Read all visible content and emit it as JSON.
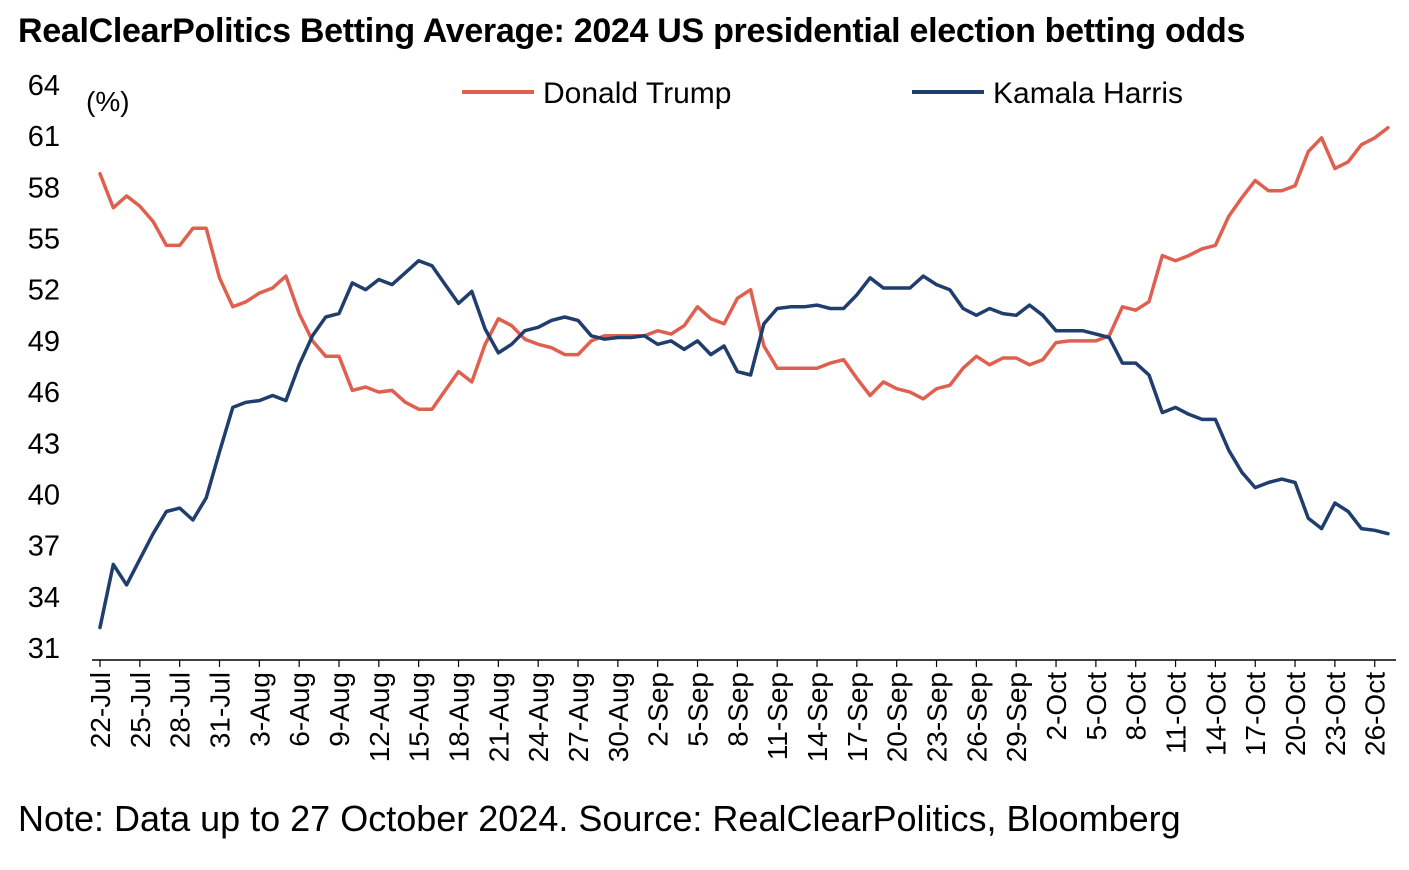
{
  "title": "RealClearPolitics Betting Average: 2024 US presidential election betting odds",
  "note": "Note: Data up to 27 October 2024. Source: RealClearPolitics, Bloomberg",
  "chart_data": {
    "type": "line",
    "title": "RealClearPolitics Betting Average: 2024 US presidential election betting odds",
    "y_unit_label": "(%)",
    "ylim": [
      31,
      64
    ],
    "y_ticks": [
      31,
      34,
      37,
      40,
      43,
      46,
      49,
      52,
      55,
      58,
      61,
      64
    ],
    "x_tick_labels": [
      "22-Jul",
      "25-Jul",
      "28-Jul",
      "31-Jul",
      "3-Aug",
      "6-Aug",
      "9-Aug",
      "12-Aug",
      "15-Aug",
      "18-Aug",
      "21-Aug",
      "24-Aug",
      "27-Aug",
      "30-Aug",
      "2-Sep",
      "5-Sep",
      "8-Sep",
      "11-Sep",
      "14-Sep",
      "17-Sep",
      "20-Sep",
      "23-Sep",
      "26-Sep",
      "29-Sep",
      "2-Oct",
      "5-Oct",
      "8-Oct",
      "11-Oct",
      "14-Oct",
      "17-Oct",
      "20-Oct",
      "23-Oct",
      "26-Oct"
    ],
    "grid": false,
    "legend_position": "top",
    "x": [
      "22-Jul",
      "23-Jul",
      "24-Jul",
      "25-Jul",
      "26-Jul",
      "27-Jul",
      "28-Jul",
      "29-Jul",
      "30-Jul",
      "31-Jul",
      "1-Aug",
      "2-Aug",
      "3-Aug",
      "4-Aug",
      "5-Aug",
      "6-Aug",
      "7-Aug",
      "8-Aug",
      "9-Aug",
      "10-Aug",
      "11-Aug",
      "12-Aug",
      "13-Aug",
      "14-Aug",
      "15-Aug",
      "16-Aug",
      "17-Aug",
      "18-Aug",
      "19-Aug",
      "20-Aug",
      "21-Aug",
      "22-Aug",
      "23-Aug",
      "24-Aug",
      "25-Aug",
      "26-Aug",
      "27-Aug",
      "28-Aug",
      "29-Aug",
      "30-Aug",
      "31-Aug",
      "1-Sep",
      "2-Sep",
      "3-Sep",
      "4-Sep",
      "5-Sep",
      "6-Sep",
      "7-Sep",
      "8-Sep",
      "9-Sep",
      "10-Sep",
      "11-Sep",
      "12-Sep",
      "13-Sep",
      "14-Sep",
      "15-Sep",
      "16-Sep",
      "17-Sep",
      "18-Sep",
      "19-Sep",
      "20-Sep",
      "21-Sep",
      "22-Sep",
      "23-Sep",
      "24-Sep",
      "25-Sep",
      "26-Sep",
      "27-Sep",
      "28-Sep",
      "29-Sep",
      "30-Sep",
      "1-Oct",
      "2-Oct",
      "3-Oct",
      "4-Oct",
      "5-Oct",
      "6-Oct",
      "7-Oct",
      "8-Oct",
      "9-Oct",
      "10-Oct",
      "11-Oct",
      "12-Oct",
      "13-Oct",
      "14-Oct",
      "15-Oct",
      "16-Oct",
      "17-Oct",
      "18-Oct",
      "19-Oct",
      "20-Oct",
      "21-Oct",
      "22-Oct",
      "23-Oct",
      "24-Oct",
      "25-Oct",
      "26-Oct",
      "27-Oct"
    ],
    "series": [
      {
        "name": "Donald Trump",
        "color": "#e06050",
        "values": [
          58.8,
          56.8,
          57.5,
          56.9,
          56.0,
          54.6,
          54.6,
          55.6,
          55.6,
          52.7,
          51.0,
          51.3,
          51.8,
          52.1,
          52.8,
          50.6,
          49.0,
          48.1,
          48.1,
          46.1,
          46.3,
          46.0,
          46.1,
          45.4,
          45.0,
          45.0,
          46.1,
          47.2,
          46.6,
          48.8,
          50.3,
          49.9,
          49.1,
          48.8,
          48.6,
          48.2,
          48.2,
          49.0,
          49.3,
          49.3,
          49.3,
          49.3,
          49.6,
          49.4,
          49.9,
          51.0,
          50.3,
          50.0,
          51.5,
          52.0,
          48.7,
          47.4,
          47.4,
          47.4,
          47.4,
          47.7,
          47.9,
          46.8,
          45.8,
          46.6,
          46.2,
          46.0,
          45.6,
          46.2,
          46.4,
          47.4,
          48.1,
          47.6,
          48.0,
          48.0,
          47.6,
          47.9,
          48.9,
          49.0,
          49.0,
          49.0,
          49.3,
          51.0,
          50.8,
          51.3,
          54.0,
          53.7,
          54.0,
          54.4,
          54.6,
          56.3,
          57.4,
          58.4,
          57.8,
          57.8,
          58.1,
          60.1,
          60.9,
          59.1,
          59.5,
          60.5,
          60.9,
          61.5
        ]
      },
      {
        "name": "Kamala Harris",
        "color": "#1f3e6e",
        "values": [
          32.2,
          35.9,
          34.7,
          36.2,
          37.7,
          39.0,
          39.2,
          38.5,
          39.8,
          42.5,
          45.1,
          45.4,
          45.5,
          45.8,
          45.5,
          47.6,
          49.3,
          50.4,
          50.6,
          52.4,
          52.0,
          52.6,
          52.3,
          53.0,
          53.7,
          53.4,
          52.3,
          51.2,
          51.9,
          49.7,
          48.3,
          48.8,
          49.6,
          49.8,
          50.2,
          50.4,
          50.2,
          49.3,
          49.1,
          49.2,
          49.2,
          49.3,
          48.8,
          49.0,
          48.5,
          49.0,
          48.2,
          48.7,
          47.2,
          47.0,
          50.0,
          50.9,
          51.0,
          51.0,
          51.1,
          50.9,
          50.9,
          51.7,
          52.7,
          52.1,
          52.1,
          52.1,
          52.8,
          52.3,
          52.0,
          50.9,
          50.5,
          50.9,
          50.6,
          50.5,
          51.1,
          50.5,
          49.6,
          49.6,
          49.6,
          49.4,
          49.2,
          47.7,
          47.7,
          47.0,
          44.8,
          45.1,
          44.7,
          44.4,
          44.4,
          42.6,
          41.3,
          40.4,
          40.7,
          40.9,
          40.7,
          38.6,
          38.0,
          39.5,
          39.0,
          38.0,
          37.9,
          37.7
        ]
      }
    ]
  }
}
